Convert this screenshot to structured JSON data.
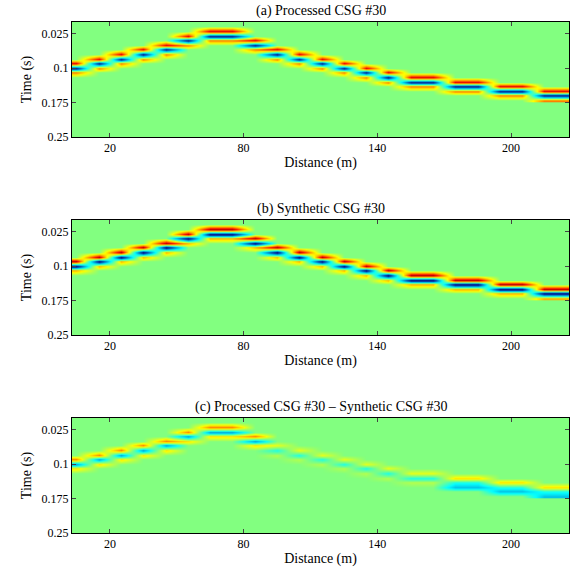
{
  "chart_data": [
    {
      "type": "heatmap",
      "title": "(a) Processed CSG #30",
      "x_label": "Distance (m)",
      "y_label": "Time (s)",
      "xlim": [
        3,
        226
      ],
      "ylim": [
        0.25,
        0
      ],
      "xticks": [
        20,
        80,
        140,
        200
      ],
      "yticks": [
        0.025,
        0.1,
        0.175,
        0.25
      ],
      "zlim": [
        -1,
        1
      ],
      "x": [
        5,
        15,
        25,
        35,
        45,
        55,
        65,
        75,
        85,
        95,
        105,
        115,
        125,
        135,
        145,
        155,
        165,
        175,
        185,
        195,
        205,
        215,
        225
      ],
      "y": [
        0.01,
        0.02,
        0.03,
        0.04,
        0.05,
        0.06,
        0.07,
        0.08,
        0.09,
        0.1,
        0.11,
        0.12,
        0.13,
        0.14,
        0.15,
        0.16,
        0.17
      ],
      "z": [
        [
          0,
          0,
          0,
          0,
          0,
          0,
          0,
          0,
          0,
          0,
          0,
          0,
          0,
          0,
          0,
          0,
          0,
          0,
          0,
          0,
          0,
          0,
          0
        ],
        [
          0,
          0,
          0,
          0,
          0,
          0,
          0.8,
          0.8,
          0,
          0,
          0,
          0,
          0,
          0,
          0,
          0,
          0,
          0,
          0,
          0,
          0,
          0,
          0
        ],
        [
          0,
          0,
          0,
          0,
          0,
          0.8,
          -0.9,
          -0.9,
          0,
          0,
          0,
          0,
          0,
          0,
          0,
          0,
          0,
          0,
          0,
          0,
          0,
          0,
          0
        ],
        [
          0,
          0,
          0,
          0,
          0,
          -0.9,
          0.5,
          0.5,
          0.8,
          0,
          0,
          0,
          0,
          0,
          0,
          0,
          0,
          0,
          0,
          0,
          0,
          0,
          0
        ],
        [
          0,
          0,
          0,
          0,
          0.8,
          0.5,
          0,
          0,
          -0.9,
          0,
          0,
          0,
          0,
          0,
          0,
          0,
          0,
          0,
          0,
          0,
          0,
          0,
          0
        ],
        [
          0,
          0,
          0,
          0.8,
          -0.9,
          0,
          0,
          0,
          0.5,
          0.8,
          0,
          0,
          0,
          0,
          0,
          0,
          0,
          0,
          0,
          0,
          0,
          0,
          0
        ],
        [
          0,
          0,
          0.8,
          -0.9,
          0.5,
          0,
          0,
          0,
          0,
          -0.9,
          0.8,
          0,
          0,
          0,
          0,
          0,
          0,
          0,
          0,
          0,
          0,
          0,
          0
        ],
        [
          0,
          0.8,
          -0.9,
          0.5,
          0,
          0,
          0,
          0,
          0,
          0.5,
          -0.9,
          0.8,
          0,
          0,
          0,
          0,
          0,
          0,
          0,
          0,
          0,
          0,
          0
        ],
        [
          0.8,
          -0.9,
          0.5,
          0,
          0,
          0,
          0,
          0,
          0,
          0,
          0.5,
          -0.9,
          0.8,
          0,
          0,
          0,
          0,
          0,
          0,
          0,
          0,
          0,
          0
        ],
        [
          -0.9,
          0.5,
          0,
          0,
          0,
          0,
          0,
          0,
          0,
          0,
          0,
          0.5,
          -0.9,
          0.8,
          0,
          0,
          0,
          0,
          0,
          0,
          0,
          0,
          0
        ],
        [
          0.5,
          0,
          0,
          0,
          0,
          0,
          0,
          0,
          0,
          0,
          0,
          0,
          0.5,
          -0.9,
          0.8,
          0,
          0,
          0,
          0,
          0,
          0,
          0,
          0
        ],
        [
          0,
          0,
          0,
          0,
          0,
          0,
          0,
          0,
          0,
          0,
          0,
          0,
          0,
          0.5,
          -0.9,
          0.8,
          0.8,
          0,
          0,
          0,
          0,
          0,
          0
        ],
        [
          0,
          0,
          0,
          0,
          0,
          0,
          0,
          0,
          0,
          0,
          0,
          0,
          0,
          0,
          0.5,
          -0.9,
          -0.9,
          0.8,
          0.8,
          0,
          0,
          0,
          0
        ],
        [
          0,
          0,
          0,
          0,
          0,
          0,
          0,
          0,
          0,
          0,
          0,
          0,
          0,
          0,
          0,
          0.5,
          0.5,
          -0.9,
          -0.9,
          0.8,
          0.8,
          0,
          0
        ],
        [
          0,
          0,
          0,
          0,
          0,
          0,
          0,
          0,
          0,
          0,
          0,
          0,
          0,
          0,
          0,
          0,
          0,
          0.5,
          0.5,
          -0.9,
          -0.9,
          0.8,
          0.8
        ],
        [
          0,
          0,
          0,
          0,
          0,
          0,
          0,
          0,
          0,
          0,
          0,
          0,
          0,
          0,
          0,
          0,
          0,
          0,
          0,
          0.5,
          0.5,
          -0.9,
          -0.9
        ],
        [
          0,
          0,
          0,
          0,
          0,
          0,
          0,
          0,
          0,
          0,
          0,
          0,
          0,
          0,
          0,
          0,
          0,
          0,
          0,
          0,
          0,
          0.5,
          0.5
        ]
      ]
    },
    {
      "type": "heatmap",
      "title": "(b) Synthetic CSG #30",
      "x_label": "Distance (m)",
      "y_label": "Time (s)",
      "xlim": [
        3,
        226
      ],
      "ylim": [
        0.25,
        0
      ],
      "xticks": [
        20,
        80,
        140,
        200
      ],
      "yticks": [
        0.025,
        0.1,
        0.175,
        0.25
      ],
      "zlim": [
        -1,
        1
      ],
      "x": [
        5,
        15,
        25,
        35,
        45,
        55,
        65,
        75,
        85,
        95,
        105,
        115,
        125,
        135,
        145,
        155,
        165,
        175,
        185,
        195,
        205,
        215,
        225
      ],
      "y": [
        0.01,
        0.02,
        0.03,
        0.04,
        0.05,
        0.06,
        0.07,
        0.08,
        0.09,
        0.1,
        0.11,
        0.12,
        0.13,
        0.14,
        0.15,
        0.16,
        0.17
      ],
      "z": [
        [
          0,
          0,
          0,
          0,
          0,
          0,
          0,
          0,
          0,
          0,
          0,
          0,
          0,
          0,
          0,
          0,
          0,
          0,
          0,
          0,
          0,
          0,
          0
        ],
        [
          0,
          0,
          0,
          0,
          0,
          0,
          0.9,
          0.9,
          0,
          0,
          0,
          0,
          0,
          0,
          0,
          0,
          0,
          0,
          0,
          0,
          0,
          0,
          0
        ],
        [
          0,
          0,
          0,
          0,
          0,
          0.9,
          -1,
          -1,
          0,
          0,
          0,
          0,
          0,
          0,
          0,
          0,
          0,
          0,
          0,
          0,
          0,
          0,
          0
        ],
        [
          0,
          0,
          0,
          0,
          0,
          -1,
          0.4,
          0.4,
          0.9,
          0,
          0,
          0,
          0,
          0,
          0,
          0,
          0,
          0,
          0,
          0,
          0,
          0,
          0
        ],
        [
          0,
          0,
          0,
          0,
          0.9,
          0.4,
          0,
          0,
          -1,
          0,
          0,
          0,
          0,
          0,
          0,
          0,
          0,
          0,
          0,
          0,
          0,
          0,
          0
        ],
        [
          0,
          0,
          0,
          0.9,
          -1,
          0,
          0,
          0,
          0.4,
          0.9,
          0,
          0,
          0,
          0,
          0,
          0,
          0,
          0,
          0,
          0,
          0,
          0,
          0
        ],
        [
          0,
          0,
          0.9,
          -1,
          0.4,
          0,
          0,
          0,
          0,
          -1,
          0.9,
          0,
          0,
          0,
          0,
          0,
          0,
          0,
          0,
          0,
          0,
          0,
          0
        ],
        [
          0,
          0.9,
          -1,
          0.4,
          0,
          0,
          0,
          0,
          0,
          0.4,
          -1,
          0.9,
          0,
          0,
          0,
          0,
          0,
          0,
          0,
          0,
          0,
          0,
          0
        ],
        [
          0.9,
          -1,
          0.4,
          0,
          0,
          0,
          0,
          0,
          0,
          0,
          0.4,
          -1,
          0.9,
          0,
          0,
          0,
          0,
          0,
          0,
          0,
          0,
          0,
          0
        ],
        [
          -1,
          0.4,
          0,
          0,
          0,
          0,
          0,
          0,
          0,
          0,
          0,
          0.4,
          -1,
          0.9,
          0,
          0,
          0,
          0,
          0,
          0,
          0,
          0,
          0
        ],
        [
          0.4,
          0,
          0,
          0,
          0,
          0,
          0,
          0,
          0,
          0,
          0,
          0,
          0.4,
          -1,
          0.9,
          0,
          0,
          0,
          0,
          0,
          0,
          0,
          0
        ],
        [
          0,
          0,
          0,
          0,
          0,
          0,
          0,
          0,
          0,
          0,
          0,
          0,
          0,
          0.4,
          -1,
          0.9,
          0.9,
          0,
          0,
          0,
          0,
          0,
          0
        ],
        [
          0,
          0,
          0,
          0,
          0,
          0,
          0,
          0,
          0,
          0,
          0,
          0,
          0,
          0,
          0.4,
          -1,
          -1,
          0.9,
          0.9,
          0,
          0,
          0,
          0
        ],
        [
          0,
          0,
          0,
          0,
          0,
          0,
          0,
          0,
          0,
          0,
          0,
          0,
          0,
          0,
          0,
          0.4,
          0.4,
          -1,
          -1,
          0.9,
          0.9,
          0,
          0
        ],
        [
          0,
          0,
          0,
          0,
          0,
          0,
          0,
          0,
          0,
          0,
          0,
          0,
          0,
          0,
          0,
          0,
          0,
          0.4,
          0.4,
          -1,
          -1,
          0.9,
          0.9
        ],
        [
          0,
          0,
          0,
          0,
          0,
          0,
          0,
          0,
          0,
          0,
          0,
          0,
          0,
          0,
          0,
          0,
          0,
          0,
          0,
          0.4,
          0.4,
          -1,
          -1
        ],
        [
          0,
          0,
          0,
          0,
          0,
          0,
          0,
          0,
          0,
          0,
          0,
          0,
          0,
          0,
          0,
          0,
          0,
          0,
          0,
          0,
          0,
          0.4,
          0.4
        ]
      ]
    },
    {
      "type": "heatmap",
      "title": "(c) Processed CSG #30 – Synthetic CSG #30",
      "x_label": "Distance (m)",
      "y_label": "Time (s)",
      "xlim": [
        3,
        226
      ],
      "ylim": [
        0.25,
        0
      ],
      "xticks": [
        20,
        80,
        140,
        200
      ],
      "yticks": [
        0.025,
        0.1,
        0.175,
        0.25
      ],
      "zlim": [
        -1,
        1
      ],
      "x": [
        5,
        15,
        25,
        35,
        45,
        55,
        65,
        75,
        85,
        95,
        105,
        115,
        125,
        135,
        145,
        155,
        165,
        175,
        185,
        195,
        205,
        215,
        225
      ],
      "y": [
        0.01,
        0.02,
        0.03,
        0.04,
        0.05,
        0.06,
        0.07,
        0.08,
        0.09,
        0.1,
        0.11,
        0.12,
        0.13,
        0.14,
        0.15,
        0.16,
        0.17
      ],
      "z": [
        [
          0,
          0,
          0,
          0,
          0,
          0,
          0,
          0,
          0,
          0,
          0,
          0,
          0,
          0,
          0,
          0,
          0,
          0,
          0,
          0,
          0,
          0,
          0
        ],
        [
          0,
          0,
          0,
          0,
          0,
          0,
          0.5,
          0.5,
          0,
          0,
          0,
          0,
          0,
          0,
          0,
          0,
          0,
          0,
          0,
          0,
          0,
          0,
          0
        ],
        [
          0,
          0,
          0,
          0,
          0,
          0.5,
          -0.5,
          -0.5,
          0,
          0,
          0,
          0,
          0,
          0,
          0,
          0,
          0,
          0,
          0,
          0,
          0,
          0,
          0
        ],
        [
          0,
          0,
          0,
          0,
          0,
          -0.5,
          0.3,
          0.3,
          0.5,
          0,
          0,
          0,
          0,
          0,
          0,
          0,
          0,
          0,
          0,
          0,
          0,
          0,
          0
        ],
        [
          0,
          0,
          0,
          0,
          0.5,
          0.3,
          0,
          0,
          -0.5,
          0,
          0,
          0,
          0,
          0,
          0,
          0,
          0,
          0,
          0,
          0,
          0,
          0,
          0
        ],
        [
          0,
          0,
          0,
          0.5,
          -0.5,
          0,
          0,
          0,
          0.3,
          0.2,
          0,
          0,
          0,
          0,
          0,
          0,
          0,
          0,
          0,
          0,
          0,
          0,
          0
        ],
        [
          0,
          0,
          0.5,
          -0.5,
          0.3,
          0,
          0,
          0,
          0,
          -0.2,
          0.2,
          0,
          0,
          0,
          0,
          0,
          0,
          0,
          0,
          0,
          0,
          0,
          0
        ],
        [
          0,
          0.5,
          -0.5,
          0.3,
          0,
          0,
          0,
          0,
          0,
          0.1,
          -0.2,
          0.2,
          0,
          0,
          0,
          0,
          0,
          0,
          0,
          0,
          0,
          0,
          0
        ],
        [
          0.5,
          -0.5,
          0.3,
          0,
          0,
          0,
          0,
          0,
          0,
          0,
          0.1,
          -0.2,
          0.2,
          0,
          0,
          0,
          0,
          0,
          0,
          0,
          0,
          0,
          0
        ],
        [
          -0.5,
          0.3,
          0,
          0,
          0,
          0,
          0,
          0,
          0,
          0,
          0,
          0.1,
          -0.2,
          0.2,
          0,
          0,
          0,
          0,
          0,
          0,
          0,
          0,
          0
        ],
        [
          0.3,
          0,
          0,
          0,
          0,
          0,
          0,
          0,
          0,
          0,
          0,
          0,
          0.1,
          -0.2,
          0.2,
          0,
          0,
          0,
          0,
          0,
          0,
          0,
          0
        ],
        [
          0,
          0,
          0,
          0,
          0,
          0,
          0,
          0,
          0,
          0,
          0,
          0,
          0,
          0.1,
          -0.2,
          0.2,
          0.2,
          0,
          0,
          0,
          0,
          0,
          0
        ],
        [
          0,
          0,
          0,
          0,
          0,
          0,
          0,
          0,
          0,
          0,
          0,
          0,
          0,
          0,
          0.1,
          -0.2,
          -0.2,
          0.3,
          0.3,
          0,
          0,
          0,
          0
        ],
        [
          0,
          0,
          0,
          0,
          0,
          0,
          0,
          0,
          0,
          0,
          0,
          0,
          0,
          0,
          0,
          0.1,
          0.1,
          -0.2,
          -0.2,
          0.3,
          0.3,
          0,
          0
        ],
        [
          0,
          0,
          0,
          0,
          0,
          0,
          0,
          0,
          0,
          0,
          0,
          0,
          0,
          0,
          0,
          0,
          0,
          -0.4,
          -0.4,
          -0.2,
          -0.2,
          0.3,
          0.3
        ],
        [
          0,
          0,
          0,
          0,
          0,
          0,
          0,
          0,
          0,
          0,
          0,
          0,
          0,
          0,
          0,
          0,
          0,
          0,
          0,
          -0.4,
          -0.4,
          -0.2,
          -0.2
        ],
        [
          0,
          0,
          0,
          0,
          0,
          0,
          0,
          0,
          0,
          0,
          0,
          0,
          0,
          0,
          0,
          0,
          0,
          0,
          0,
          0,
          0,
          -0.4,
          -0.4
        ]
      ]
    }
  ]
}
